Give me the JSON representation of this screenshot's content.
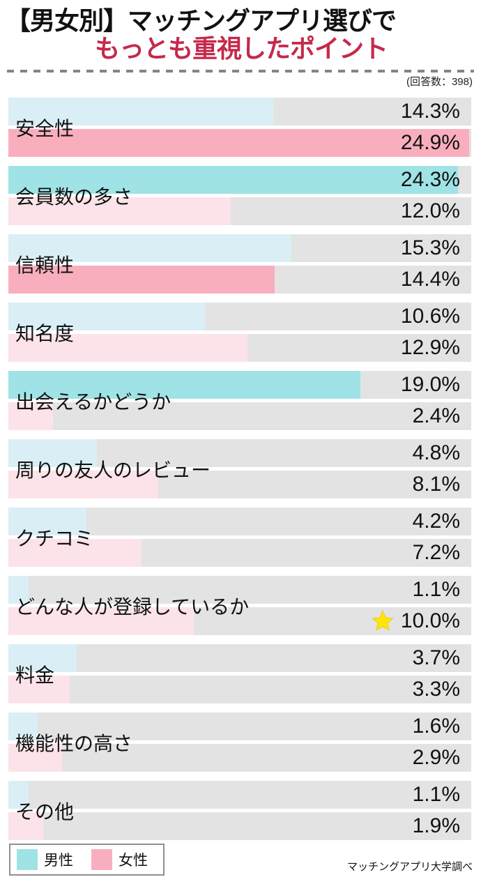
{
  "header": {
    "title_line1": "【男女別】マッチングアプリ選びで",
    "title_line2": "もっとも重視したポイント",
    "respondents": "(回答数：398)"
  },
  "chart_data": {
    "type": "bar",
    "orientation": "horizontal",
    "title": "【男女別】マッチングアプリ選びで もっとも重視したポイント",
    "value_unit": "%",
    "xlim": [
      0,
      25
    ],
    "grid": false,
    "legend_position": "bottom-left",
    "categories": [
      "安全性",
      "会員数の多さ",
      "信頼性",
      "知名度",
      "出会えるかどうか",
      "周りの友人のレビュー",
      "クチコミ",
      "どんな人が登録しているか",
      "料金",
      "機能性の高さ",
      "その他"
    ],
    "series": [
      {
        "name": "男性",
        "values": [
          14.3,
          24.3,
          15.3,
          10.6,
          19.0,
          4.8,
          4.2,
          1.1,
          3.7,
          1.6,
          1.1
        ],
        "color_emphasis": "#9FE3E6",
        "color_light": "#DAEEF5",
        "emphasized_indices": [
          1,
          4
        ]
      },
      {
        "name": "女性",
        "values": [
          24.9,
          12.0,
          14.4,
          12.9,
          2.4,
          8.1,
          7.2,
          10.0,
          3.3,
          2.9,
          1.9
        ],
        "color_emphasis": "#F9AEBE",
        "color_light": "#FCE3E9",
        "emphasized_indices": [
          0,
          2
        ]
      }
    ],
    "star_annotation": {
      "category_index": 7,
      "series_index": 1,
      "color": "#FFE40A"
    },
    "track_color": "#E3E3E3"
  },
  "legend": {
    "items": [
      {
        "label": "男性",
        "color": "#9FE3E6"
      },
      {
        "label": "女性",
        "color": "#F9AEBE"
      }
    ]
  },
  "footer": {
    "source": "マッチングアプリ大学調べ"
  },
  "colors": {
    "title_accent": "#C5294A",
    "text": "#1A1A1A",
    "divider": "#848484",
    "star": "#FFE40A"
  }
}
